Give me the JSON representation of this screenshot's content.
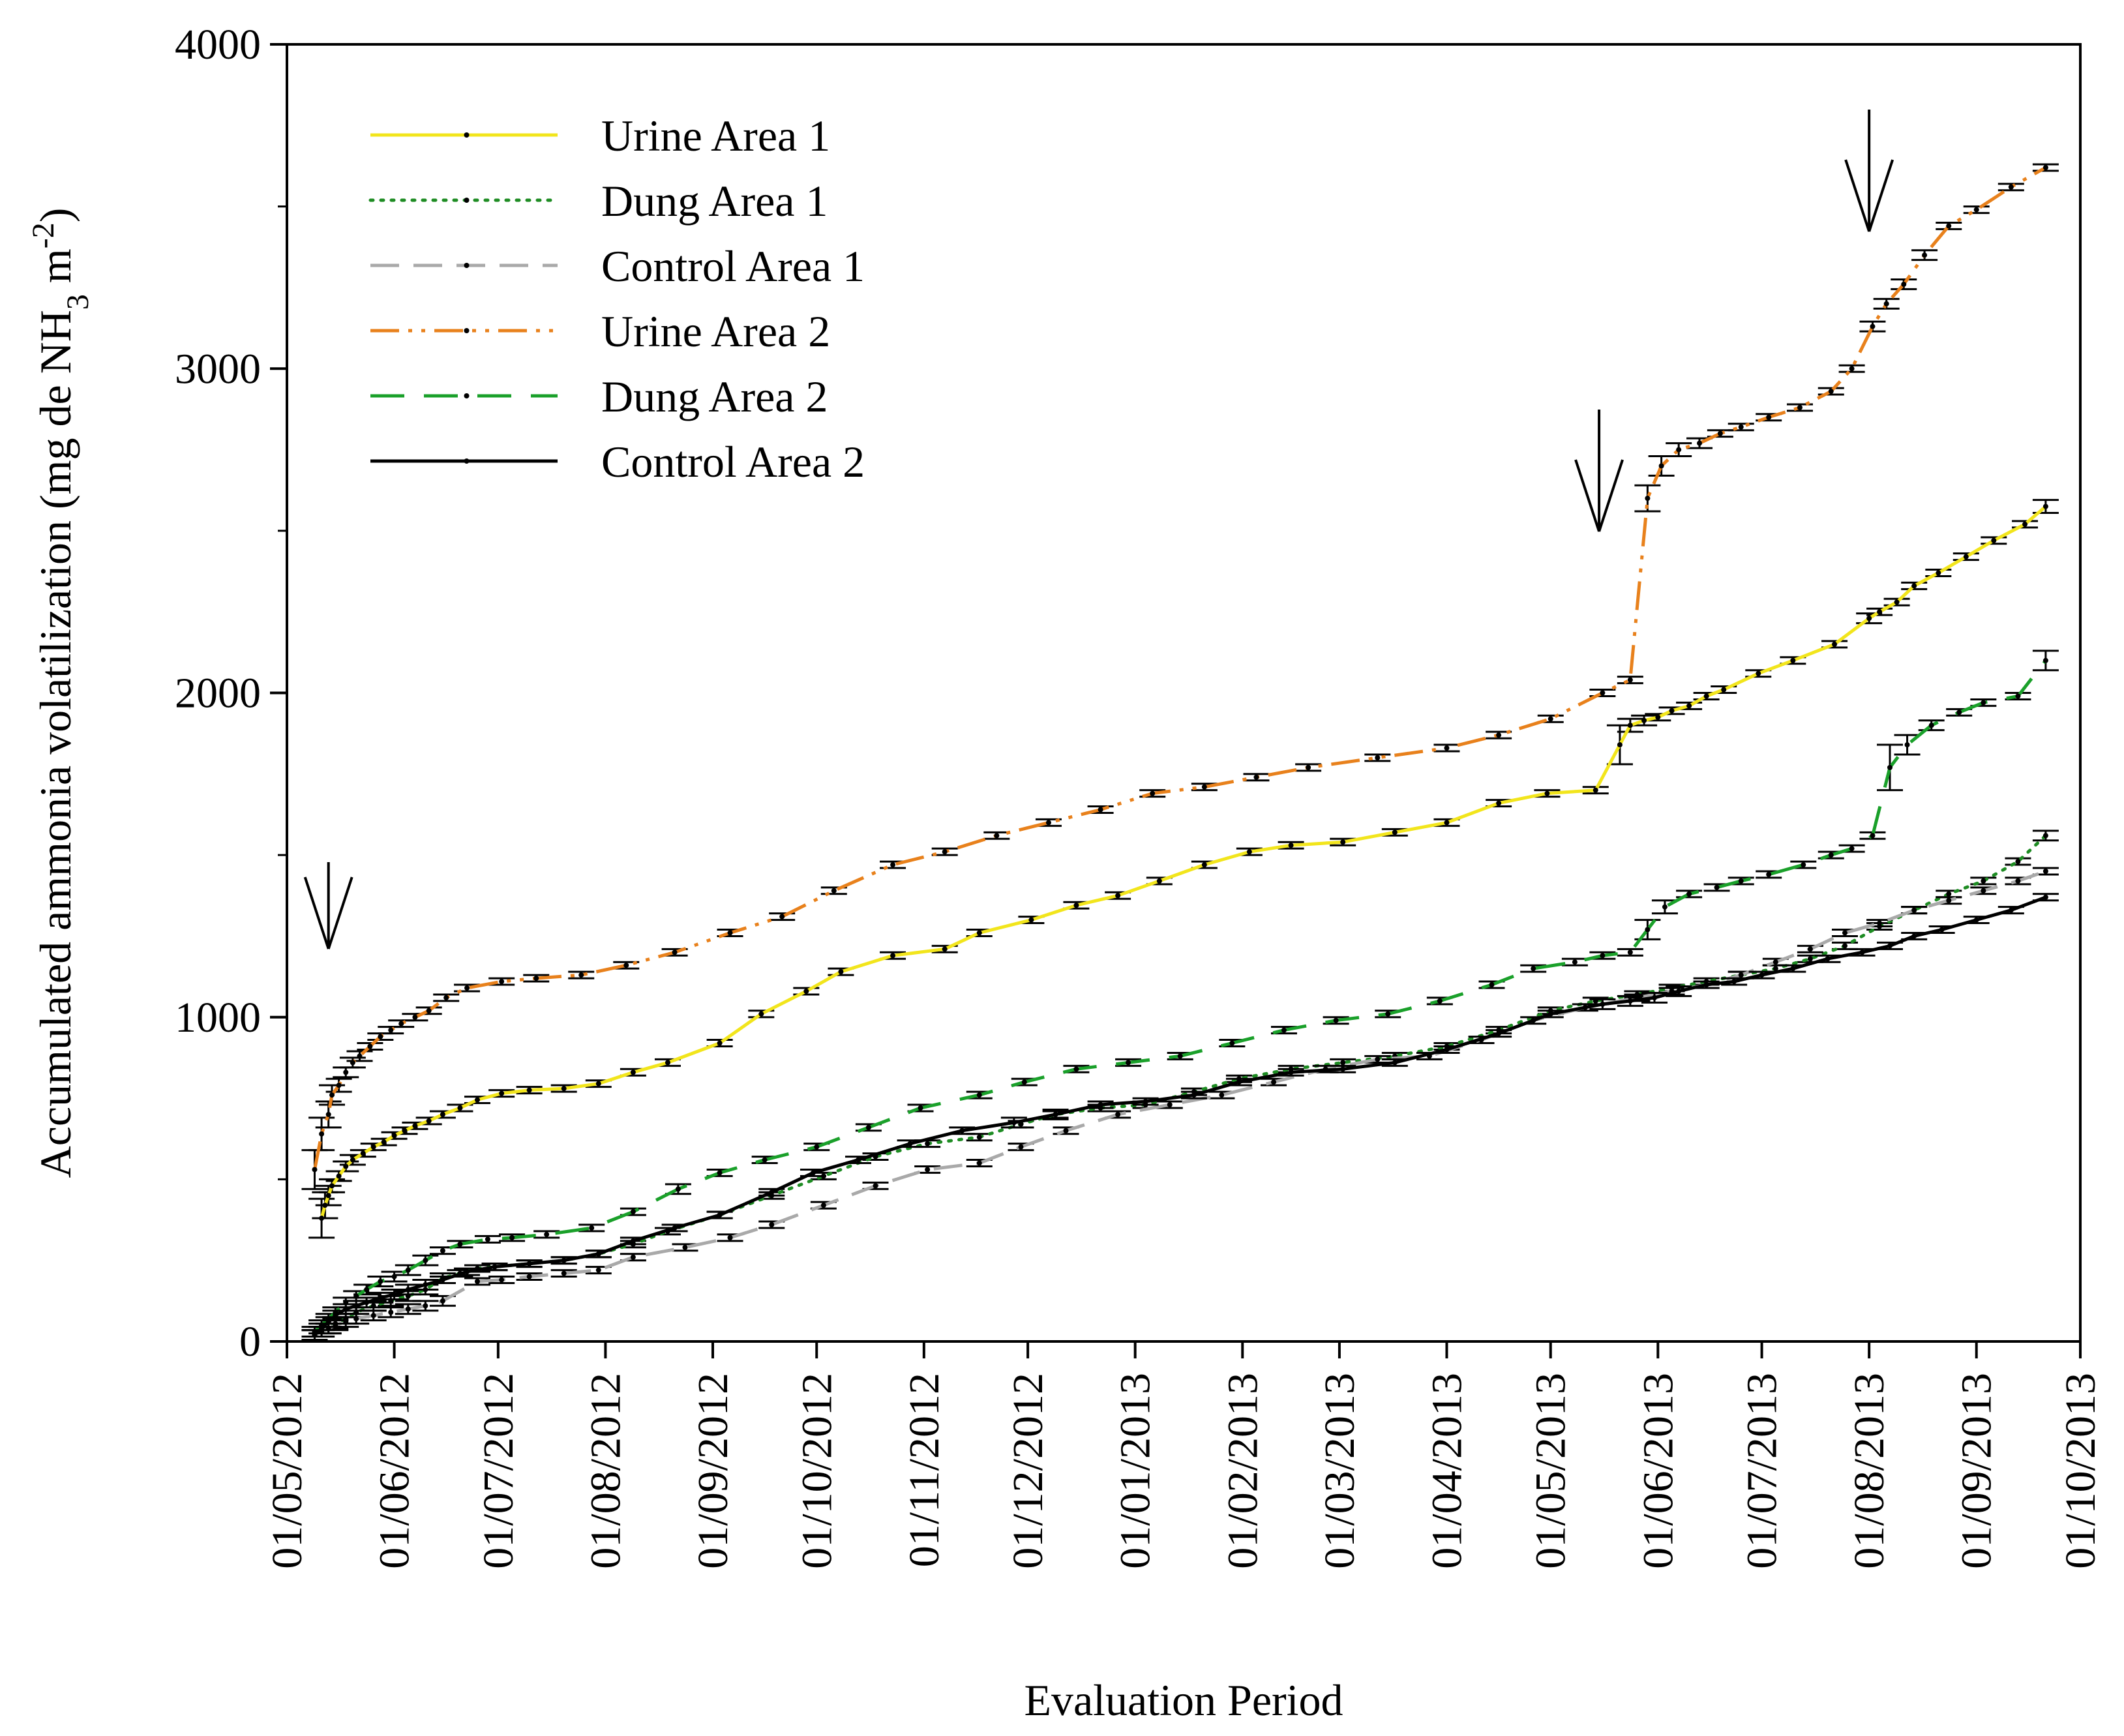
{
  "chart_data": {
    "type": "line",
    "title": "",
    "xlabel": "Evaluation Period",
    "ylabel": {
      "prefix": "Accumulated ammonia volatilization (mg de NH",
      "sub": "3",
      "middle": " m",
      "sup": "-2",
      "suffix": ")"
    },
    "ylim": [
      0,
      4000
    ],
    "y_ticks": [
      0,
      1000,
      2000,
      3000,
      4000
    ],
    "x_range_days": [
      0,
      518
    ],
    "x_ticks": [
      {
        "label": "01/05/2012",
        "day": 0
      },
      {
        "label": "01/06/2012",
        "day": 31
      },
      {
        "label": "01/07/2012",
        "day": 61
      },
      {
        "label": "01/08/2012",
        "day": 92
      },
      {
        "label": "01/09/2012",
        "day": 123
      },
      {
        "label": "01/10/2012",
        "day": 153
      },
      {
        "label": "01/11/2012",
        "day": 184
      },
      {
        "label": "01/12/2012",
        "day": 214
      },
      {
        "label": "01/01/2013",
        "day": 245
      },
      {
        "label": "01/02/2013",
        "day": 276
      },
      {
        "label": "01/03/2013",
        "day": 304
      },
      {
        "label": "01/04/2013",
        "day": 335
      },
      {
        "label": "01/05/2013",
        "day": 365
      },
      {
        "label": "01/06/2013",
        "day": 396
      },
      {
        "label": "01/07/2013",
        "day": 426
      },
      {
        "label": "01/08/2013",
        "day": 457
      },
      {
        "label": "01/09/2013",
        "day": 488
      },
      {
        "label": "01/10/2013",
        "day": 518
      }
    ],
    "legend_position": "top-left",
    "application_arrows_days": [
      12,
      379,
      457
    ],
    "series": [
      {
        "name": "Urine Area 1",
        "color": "#f2e51c",
        "dash": "solid",
        "x": [
          10,
          11,
          12,
          13,
          15,
          17,
          19,
          22,
          25,
          28,
          31,
          34,
          37,
          41,
          45,
          50,
          55,
          62,
          70,
          80,
          90,
          100,
          110,
          125,
          137,
          150,
          160,
          175,
          190,
          200,
          215,
          228,
          240,
          252,
          265,
          278,
          290,
          305,
          320,
          335,
          350,
          364,
          378,
          385,
          388,
          392,
          396,
          400,
          405,
          410,
          415,
          425,
          435,
          447,
          457,
          460,
          465,
          470,
          477,
          485,
          493,
          502,
          508
        ],
        "y": [
          380,
          420,
          450,
          480,
          510,
          540,
          560,
          580,
          600,
          615,
          635,
          650,
          665,
          680,
          700,
          720,
          745,
          765,
          775,
          780,
          795,
          830,
          860,
          920,
          1010,
          1080,
          1140,
          1190,
          1210,
          1260,
          1300,
          1345,
          1375,
          1420,
          1470,
          1510,
          1530,
          1540,
          1570,
          1600,
          1660,
          1690,
          1700,
          1840,
          1900,
          1915,
          1925,
          1945,
          1960,
          1990,
          2010,
          2060,
          2100,
          2150,
          2230,
          2250,
          2280,
          2330,
          2370,
          2420,
          2470,
          2520,
          2575
        ],
        "err": [
          60,
          40,
          30,
          20,
          15,
          15,
          15,
          10,
          10,
          10,
          10,
          10,
          10,
          10,
          10,
          10,
          10,
          10,
          10,
          10,
          10,
          10,
          10,
          10,
          10,
          10,
          10,
          10,
          10,
          10,
          10,
          10,
          10,
          10,
          10,
          10,
          10,
          10,
          10,
          10,
          10,
          10,
          10,
          60,
          20,
          15,
          10,
          10,
          10,
          10,
          10,
          10,
          10,
          10,
          15,
          10,
          10,
          10,
          10,
          10,
          10,
          10,
          20
        ]
      },
      {
        "name": "Dung Area 1",
        "color": "#1e8c23",
        "dash": "dotted",
        "x": [
          8,
          10,
          12,
          14,
          17,
          20,
          25,
          30,
          35,
          40,
          45,
          50,
          55,
          60,
          70,
          80,
          90,
          100,
          110,
          125,
          140,
          155,
          170,
          185,
          200,
          212,
          222,
          235,
          248,
          262,
          275,
          290,
          305,
          320,
          335,
          350,
          365,
          378,
          390,
          400,
          410,
          420,
          430,
          440,
          450,
          460,
          470,
          480,
          490,
          500,
          508
        ],
        "y": [
          20,
          30,
          40,
          55,
          70,
          90,
          110,
          125,
          140,
          160,
          195,
          210,
          225,
          230,
          240,
          250,
          270,
          300,
          340,
          390,
          450,
          510,
          570,
          610,
          630,
          670,
          700,
          720,
          730,
          770,
          810,
          840,
          860,
          880,
          910,
          960,
          1020,
          1050,
          1070,
          1090,
          1110,
          1130,
          1150,
          1180,
          1220,
          1280,
          1330,
          1380,
          1420,
          1480,
          1560
        ],
        "err": [
          15,
          15,
          15,
          15,
          15,
          15,
          15,
          15,
          15,
          15,
          15,
          10,
          10,
          10,
          10,
          10,
          10,
          10,
          10,
          10,
          10,
          10,
          10,
          10,
          10,
          10,
          10,
          10,
          10,
          10,
          10,
          10,
          10,
          10,
          10,
          10,
          10,
          10,
          10,
          10,
          10,
          10,
          10,
          10,
          10,
          10,
          10,
          10,
          10,
          10,
          15
        ]
      },
      {
        "name": "Control Area 1",
        "color": "#a9a9a9",
        "dash": "longdash",
        "x": [
          8,
          10,
          12,
          14,
          17,
          20,
          25,
          30,
          35,
          40,
          45,
          55,
          62,
          70,
          80,
          90,
          100,
          115,
          128,
          140,
          155,
          170,
          185,
          200,
          212,
          225,
          240,
          255,
          270,
          285,
          300,
          315,
          330,
          345,
          360,
          375,
          390,
          400,
          410,
          420,
          430,
          440,
          450,
          460,
          470,
          480,
          490,
          500,
          508
        ],
        "y": [
          20,
          30,
          40,
          50,
          60,
          70,
          80,
          90,
          100,
          110,
          125,
          185,
          190,
          200,
          210,
          220,
          260,
          290,
          320,
          360,
          420,
          480,
          530,
          550,
          600,
          650,
          700,
          730,
          760,
          800,
          840,
          870,
          880,
          930,
          990,
          1030,
          1060,
          1080,
          1100,
          1130,
          1170,
          1210,
          1260,
          1290,
          1330,
          1360,
          1390,
          1420,
          1450
        ],
        "err": [
          15,
          15,
          15,
          15,
          15,
          15,
          15,
          15,
          15,
          15,
          15,
          10,
          10,
          10,
          10,
          10,
          10,
          10,
          10,
          10,
          10,
          10,
          10,
          10,
          10,
          10,
          10,
          10,
          10,
          10,
          10,
          10,
          10,
          10,
          10,
          10,
          10,
          10,
          10,
          10,
          10,
          10,
          10,
          10,
          10,
          10,
          10,
          10,
          10
        ]
      },
      {
        "name": "Urine Area 2",
        "color": "#e8811c",
        "dash": "dashdotdot",
        "x": [
          8,
          10,
          12,
          13,
          15,
          17,
          19,
          21,
          24,
          27,
          30,
          33,
          37,
          41,
          46,
          52,
          62,
          72,
          85,
          98,
          112,
          128,
          143,
          158,
          175,
          190,
          205,
          220,
          235,
          250,
          265,
          280,
          295,
          315,
          335,
          350,
          365,
          380,
          388,
          393,
          397,
          402,
          408,
          414,
          420,
          428,
          437,
          446,
          452,
          458,
          462,
          467,
          473,
          480,
          488,
          498,
          508
        ],
        "y": [
          530,
          640,
          700,
          760,
          790,
          830,
          860,
          880,
          910,
          940,
          960,
          980,
          1000,
          1020,
          1060,
          1090,
          1110,
          1120,
          1130,
          1160,
          1200,
          1260,
          1310,
          1390,
          1470,
          1510,
          1560,
          1600,
          1640,
          1690,
          1710,
          1740,
          1770,
          1800,
          1830,
          1870,
          1920,
          2000,
          2040,
          2600,
          2700,
          2750,
          2770,
          2800,
          2820,
          2850,
          2880,
          2930,
          3000,
          3130,
          3200,
          3260,
          3350,
          3440,
          3490,
          3560,
          3620
        ],
        "err": [
          60,
          50,
          40,
          30,
          20,
          15,
          15,
          15,
          10,
          10,
          10,
          10,
          10,
          10,
          10,
          10,
          10,
          10,
          10,
          10,
          10,
          10,
          10,
          10,
          10,
          10,
          10,
          10,
          10,
          10,
          10,
          10,
          10,
          10,
          10,
          10,
          10,
          10,
          10,
          40,
          30,
          20,
          15,
          10,
          10,
          10,
          10,
          10,
          10,
          15,
          15,
          15,
          15,
          10,
          10,
          10,
          10
        ]
      },
      {
        "name": "Dung Area 2",
        "color": "#1aa02a",
        "dash": "dashed",
        "x": [
          8,
          10,
          12,
          14,
          17,
          20,
          23,
          27,
          31,
          35,
          40,
          45,
          50,
          58,
          65,
          75,
          88,
          100,
          113,
          125,
          138,
          153,
          168,
          183,
          200,
          213,
          228,
          243,
          258,
          273,
          288,
          303,
          318,
          333,
          348,
          360,
          372,
          380,
          388,
          393,
          398,
          405,
          413,
          420,
          428,
          438,
          446,
          452,
          458,
          463,
          468,
          475,
          483,
          490,
          500,
          508
        ],
        "y": [
          30,
          50,
          70,
          90,
          120,
          140,
          160,
          185,
          200,
          220,
          250,
          280,
          300,
          315,
          320,
          330,
          350,
          400,
          470,
          520,
          560,
          600,
          660,
          720,
          760,
          800,
          840,
          860,
          880,
          920,
          960,
          990,
          1010,
          1050,
          1100,
          1150,
          1170,
          1190,
          1200,
          1270,
          1340,
          1380,
          1400,
          1420,
          1440,
          1470,
          1500,
          1520,
          1560,
          1770,
          1840,
          1900,
          1940,
          1970,
          1990,
          2100
        ],
        "err": [
          15,
          15,
          15,
          15,
          15,
          15,
          15,
          15,
          15,
          15,
          15,
          10,
          10,
          10,
          10,
          10,
          10,
          10,
          15,
          10,
          10,
          10,
          10,
          10,
          10,
          10,
          10,
          10,
          10,
          10,
          10,
          10,
          10,
          10,
          10,
          10,
          10,
          10,
          10,
          30,
          20,
          10,
          10,
          10,
          10,
          10,
          10,
          10,
          10,
          70,
          30,
          15,
          10,
          10,
          10,
          30
        ]
      },
      {
        "name": "Control Area 2",
        "color": "#000000",
        "dash": "solid",
        "x": [
          8,
          10,
          12,
          14,
          17,
          20,
          23,
          27,
          31,
          35,
          40,
          45,
          52,
          60,
          70,
          80,
          90,
          100,
          112,
          125,
          140,
          152,
          165,
          180,
          195,
          210,
          222,
          235,
          248,
          262,
          275,
          290,
          305,
          320,
          335,
          350,
          365,
          380,
          388,
          395,
          402,
          410,
          418,
          426,
          435,
          445,
          455,
          463,
          470,
          478,
          488,
          498,
          508
        ],
        "y": [
          20,
          40,
          60,
          80,
          100,
          110,
          120,
          135,
          145,
          160,
          175,
          190,
          215,
          230,
          240,
          250,
          270,
          310,
          350,
          390,
          460,
          520,
          560,
          610,
          650,
          675,
          700,
          730,
          740,
          760,
          800,
          830,
          840,
          860,
          900,
          950,
          1010,
          1040,
          1050,
          1060,
          1080,
          1100,
          1110,
          1130,
          1150,
          1180,
          1200,
          1220,
          1250,
          1270,
          1300,
          1330,
          1370
        ],
        "err": [
          15,
          15,
          15,
          15,
          15,
          15,
          15,
          15,
          15,
          15,
          15,
          10,
          10,
          10,
          10,
          10,
          10,
          10,
          10,
          10,
          10,
          10,
          10,
          10,
          10,
          15,
          15,
          10,
          10,
          10,
          10,
          10,
          10,
          10,
          10,
          10,
          10,
          15,
          15,
          15,
          15,
          10,
          10,
          10,
          10,
          10,
          10,
          10,
          10,
          10,
          10,
          10,
          10
        ]
      }
    ]
  }
}
